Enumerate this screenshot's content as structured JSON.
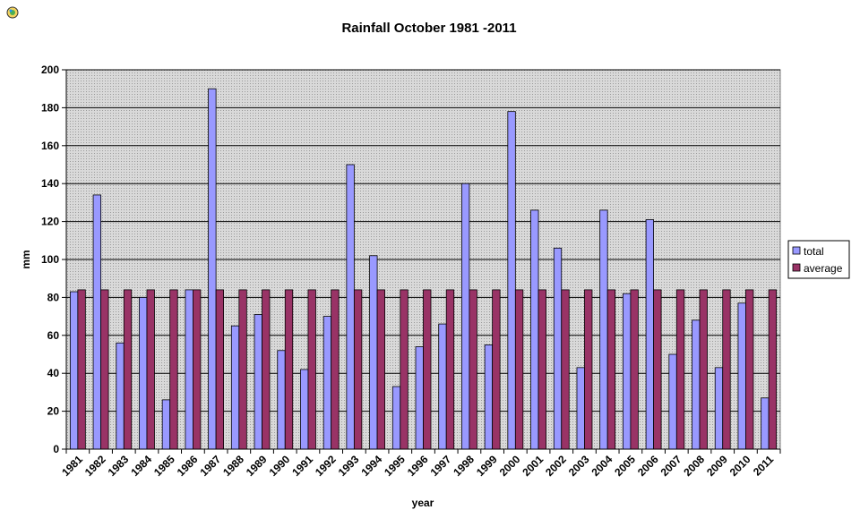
{
  "chart_data": {
    "type": "bar",
    "title": "Rainfall October 1981 -2011",
    "xlabel": "year",
    "ylabel": "mm",
    "ylim": [
      0,
      200
    ],
    "yticks": [
      0,
      20,
      40,
      60,
      80,
      100,
      120,
      140,
      160,
      180,
      200
    ],
    "grid": true,
    "legend_position": "right",
    "categories": [
      "1981",
      "1982",
      "1983",
      "1984",
      "1985",
      "1986",
      "1987",
      "1988",
      "1989",
      "1990",
      "1991",
      "1992",
      "1993",
      "1994",
      "1995",
      "1996",
      "1997",
      "1998",
      "1999",
      "2000",
      "2001",
      "2002",
      "2003",
      "2004",
      "2005",
      "2006",
      "2007",
      "2008",
      "2009",
      "2010",
      "2011"
    ],
    "series": [
      {
        "name": "total",
        "color": "#9999ff",
        "values": [
          83,
          134,
          56,
          80,
          26,
          84,
          190,
          65,
          71,
          52,
          42,
          70,
          150,
          102,
          33,
          54,
          66,
          140,
          55,
          178,
          126,
          106,
          43,
          126,
          82,
          121,
          50,
          68,
          43,
          77,
          27
        ]
      },
      {
        "name": "average",
        "color": "#993366",
        "values": [
          84,
          84,
          84,
          84,
          84,
          84,
          84,
          84,
          84,
          84,
          84,
          84,
          84,
          84,
          84,
          84,
          84,
          84,
          84,
          84,
          84,
          84,
          84,
          84,
          84,
          84,
          84,
          84,
          84,
          84,
          84
        ]
      }
    ]
  }
}
